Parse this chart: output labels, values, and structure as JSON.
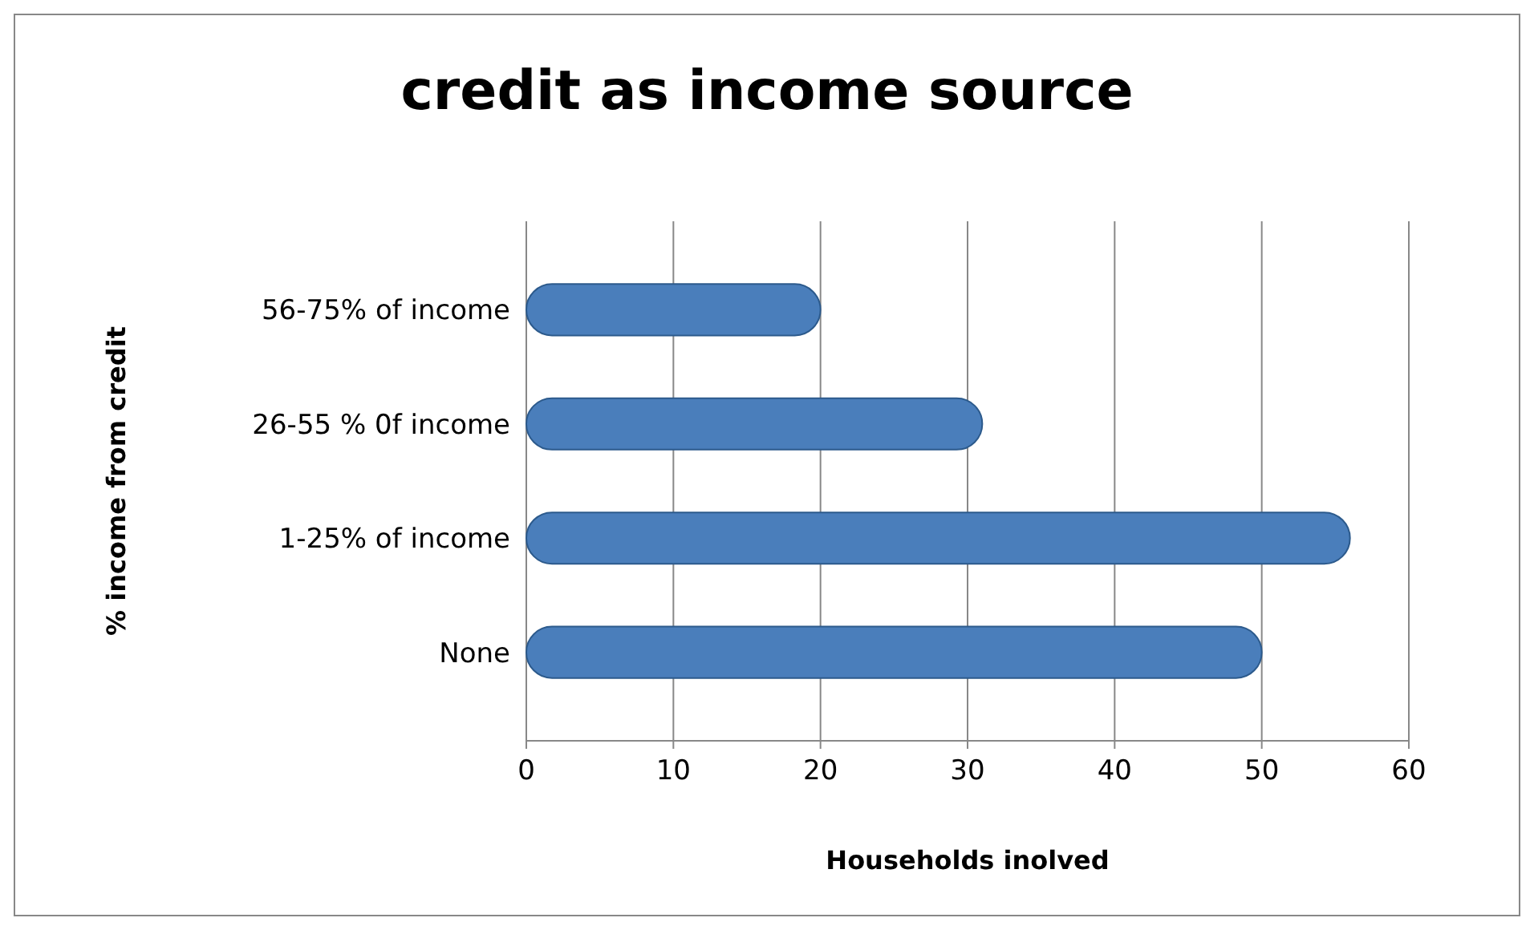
{
  "chart_data": {
    "type": "bar",
    "orientation": "horizontal",
    "title": "credit as income source",
    "xlabel": "Households inolved",
    "ylabel": "% income from credit",
    "categories": [
      "56-75% of income",
      "26-55 % 0f income",
      "1-25% of income",
      "None"
    ],
    "values": [
      20,
      31,
      56,
      50
    ],
    "color": "#4a7ebb",
    "xlim": [
      0,
      60
    ],
    "xticks": [
      0,
      10,
      20,
      30,
      40,
      50,
      60
    ],
    "grid": "x"
  }
}
